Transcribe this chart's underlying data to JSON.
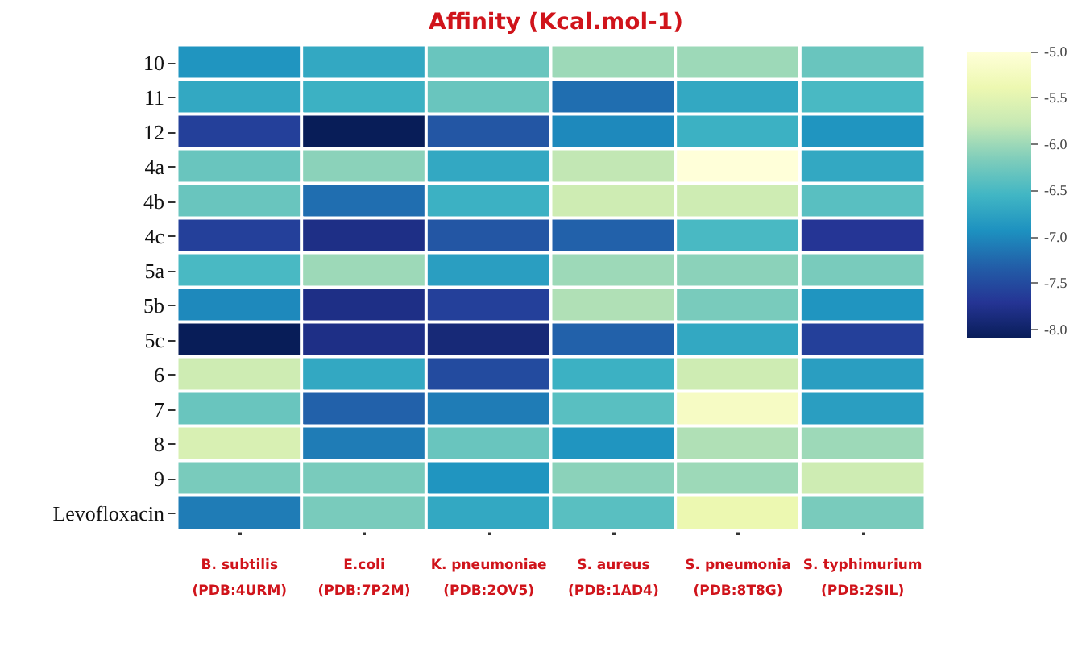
{
  "chart_data": {
    "type": "heatmap",
    "title": "Affinity (Kcal.mol-1)",
    "categories": [
      "B. subtilis\n(PDB:4URM)",
      "E.coli\n(PDB:7P2M)",
      "K. pneumoniae\n(PDB:2OV5)",
      "S. aureus\n(PDB:1AD4)",
      "S. pneumonia\n(PDB:8T8G)",
      "S. typhimurium\n(PDB:2SIL)"
    ],
    "y_categories": [
      "10",
      "11",
      "12",
      "4a",
      "4b",
      "4c",
      "5a",
      "5b",
      "5c",
      "6",
      "7",
      "8",
      "9",
      "Levofloxacin"
    ],
    "cells": [
      [
        -6.9,
        -6.7,
        -6.3,
        -6.0,
        -6.0,
        -6.3
      ],
      [
        -6.7,
        -6.6,
        -6.3,
        -7.2,
        -6.7,
        -6.5
      ],
      [
        -7.6,
        -8.1,
        -7.4,
        -7.0,
        -6.6,
        -6.9
      ],
      [
        -6.3,
        -6.1,
        -6.7,
        -5.8,
        -5.0,
        -6.7
      ],
      [
        -6.3,
        -7.2,
        -6.6,
        -5.7,
        -5.7,
        -6.4
      ],
      [
        -7.6,
        -7.8,
        -7.4,
        -7.3,
        -6.5,
        -7.7
      ],
      [
        -6.5,
        -6.0,
        -6.8,
        -6.0,
        -6.1,
        -6.2
      ],
      [
        -7.0,
        -7.8,
        -7.6,
        -5.9,
        -6.2,
        -6.9
      ],
      [
        -8.1,
        -7.8,
        -7.9,
        -7.3,
        -6.7,
        -7.6
      ],
      [
        -5.7,
        -6.7,
        -7.5,
        -6.6,
        -5.7,
        -6.8
      ],
      [
        -6.3,
        -7.3,
        -7.1,
        -6.4,
        -5.2,
        -6.8
      ],
      [
        -5.6,
        -7.1,
        -6.3,
        -6.9,
        -5.9,
        -6.0
      ],
      [
        -6.2,
        -6.2,
        -6.9,
        -6.1,
        -6.0,
        -5.7
      ],
      [
        -7.1,
        -6.2,
        -6.7,
        -6.4,
        -5.4,
        -6.2
      ]
    ],
    "clim": [
      -8.1,
      -5.0
    ],
    "cticks": [
      {
        "value": -8.0,
        "label": "-8.0"
      },
      {
        "value": -7.5,
        "label": "-7.5"
      },
      {
        "value": -7.0,
        "label": "-7.0"
      },
      {
        "value": -6.5,
        "label": "-6.5"
      },
      {
        "value": -6.0,
        "label": "-6.0"
      },
      {
        "value": -5.5,
        "label": "-5.5"
      },
      {
        "value": -5.0,
        "label": "-5.0"
      }
    ]
  }
}
